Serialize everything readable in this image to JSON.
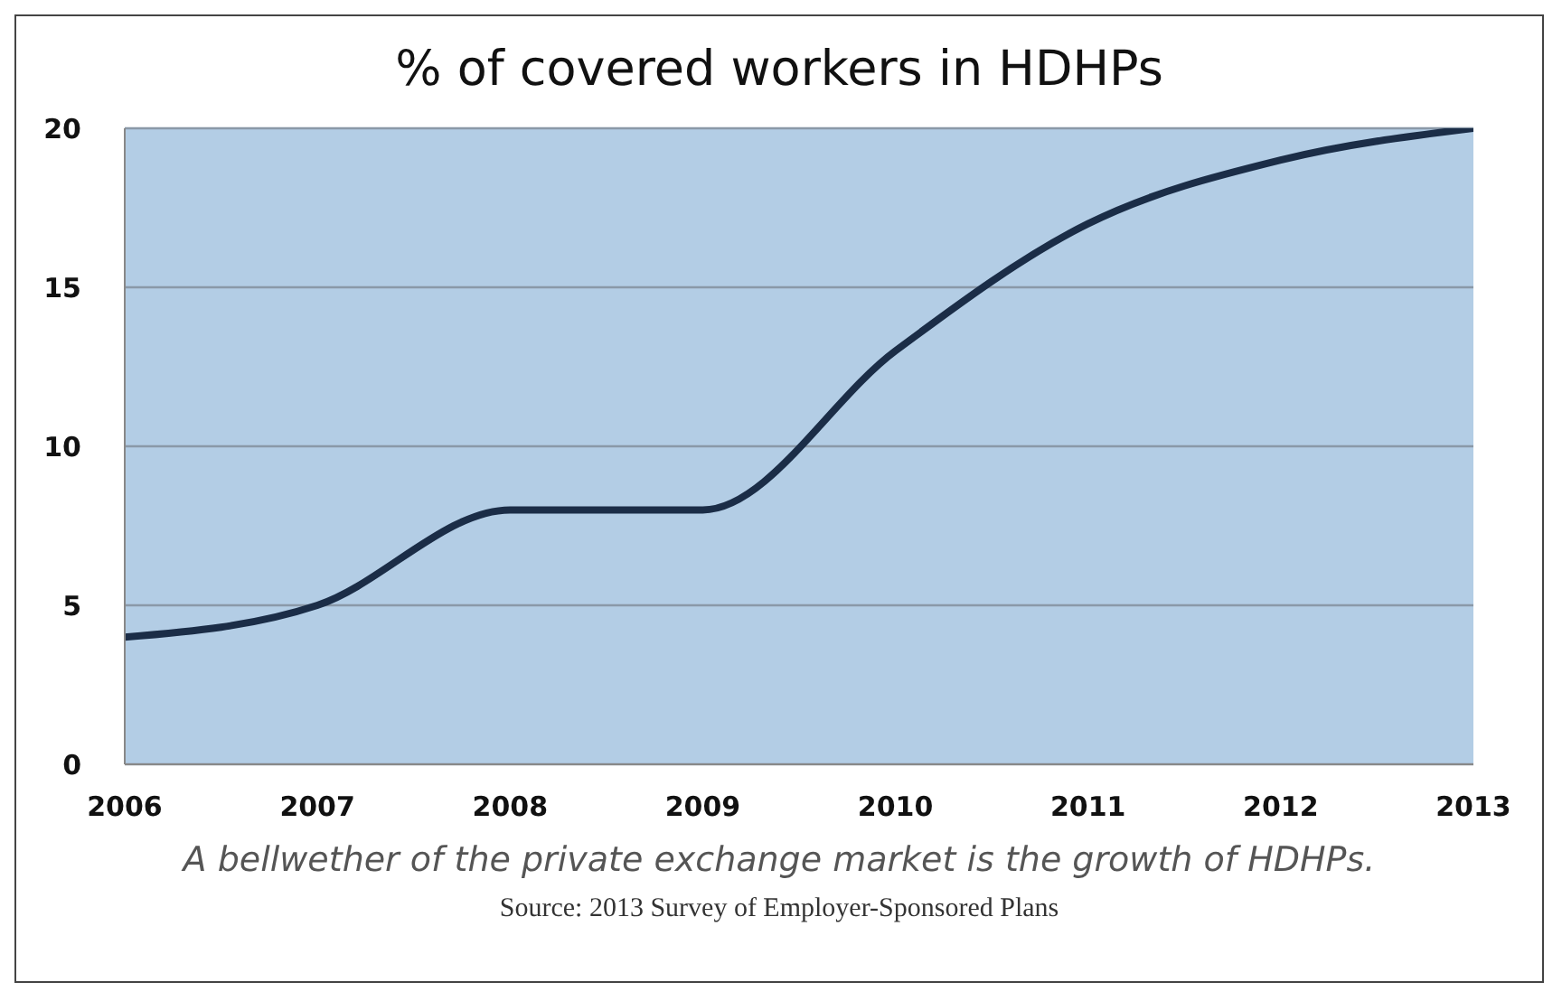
{
  "chart_data": {
    "type": "line",
    "title": "% of covered workers in HDHPs",
    "categories": [
      "2006",
      "2007",
      "2008",
      "2009",
      "2010",
      "2011",
      "2012",
      "2013"
    ],
    "series": [
      {
        "color": "#1b2d47",
        "values": [
          4,
          5,
          8,
          8,
          13,
          17,
          19,
          20
        ]
      }
    ],
    "ylim": [
      0,
      20
    ],
    "yticks": [
      0,
      5,
      10,
      15,
      20
    ],
    "grid": "y",
    "legend": false,
    "marker": "none",
    "line_style": "solid",
    "annotations": [
      "A bellwether of the private exchange market is the growth of HDHPs.",
      "Source:  2013 Survey of Employer-Sponsored Plans"
    ]
  }
}
